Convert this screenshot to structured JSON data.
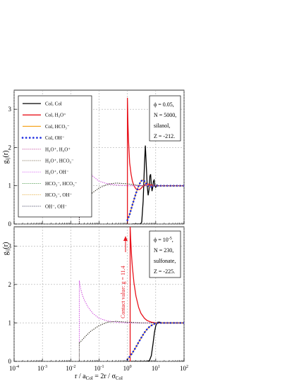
{
  "xlabel": "r / a_Col = 2r / σ_Col",
  "ylabel": "g_ij(r)",
  "xticks": [
    "10^-4",
    "10^-3",
    "10^-2",
    "10^-1",
    "10^0",
    "10^1",
    "10^2"
  ],
  "legend": [
    {
      "label": "Col, Col",
      "color": "#000000",
      "style": "solid"
    },
    {
      "label": "Col, H3O+",
      "color": "#e8141d",
      "style": "solid"
    },
    {
      "label": "Col, HCO3-",
      "color": "#f5a623",
      "style": "solid"
    },
    {
      "label": "Col, OH-",
      "color": "#1f2ee0",
      "style": "bigdots"
    },
    {
      "label": "H3O+, H3O+",
      "color": "#b9258a",
      "style": "dotted"
    },
    {
      "label": "H3O+, HCO3-",
      "color": "#7a6a50",
      "style": "dotted"
    },
    {
      "label": "H3O+, OH-",
      "color": "#d04cf0",
      "style": "dotted"
    },
    {
      "label": "HCO3-, HCO3-",
      "color": "#2e8b2e",
      "style": "dotted"
    },
    {
      "label": "HCO3-, OH-",
      "color": "#e0a020",
      "style": "dotted"
    },
    {
      "label": "OH-, OH-",
      "color": "#222244",
      "style": "dotted"
    }
  ],
  "panels": [
    {
      "info": [
        "ϕ = 0.05,",
        "N = 5000,",
        "silanol,",
        "Z = -212."
      ]
    },
    {
      "info": [
        "ϕ = 10^-5,",
        "N = 230,",
        "sulfonate,",
        "Z = -225."
      ],
      "annotation": "Contact value: g = 11.4"
    }
  ],
  "chart_data": [
    {
      "type": "line",
      "xscale": "log",
      "xlim": [
        0.0001,
        100
      ],
      "ylim": [
        0,
        3.5
      ],
      "yticks": [
        0,
        1,
        2,
        3
      ],
      "grid": true,
      "legend_position": "top-left",
      "series": [
        {
          "name": "Col, Col",
          "x": [
            1.5,
            2,
            2.5,
            2.9,
            3.2,
            3.6,
            4,
            4.3,
            4.6,
            5,
            5.4,
            5.8,
            6.2,
            6.6,
            7,
            7.4,
            7.8,
            8.3,
            8.8,
            9.3,
            10,
            11,
            12,
            14,
            20,
            100
          ],
          "y": [
            0,
            0,
            0,
            0,
            0.05,
            0.6,
            1.55,
            2.05,
            1.6,
            1.0,
            0.75,
            0.9,
            1.25,
            1.3,
            1.02,
            0.86,
            0.95,
            1.12,
            1.15,
            1.02,
            0.96,
            1.02,
            1.0,
            1.0,
            1.0,
            1.0
          ]
        },
        {
          "name": "Col, H3O+",
          "x": [
            1,
            1.05,
            1.1,
            1.2,
            1.35,
            1.5,
            1.7,
            2,
            2.3,
            2.7,
            3,
            3.5,
            4,
            5,
            6,
            8,
            10,
            20,
            100
          ],
          "y": [
            3.3,
            2.6,
            2.15,
            1.6,
            1.3,
            1.12,
            1.0,
            0.92,
            0.9,
            0.9,
            0.93,
            0.98,
            1.02,
            1.05,
            1.03,
            1.01,
            1.0,
            1.0,
            1.0
          ]
        },
        {
          "name": "Col, HCO3-",
          "x": [
            1,
            1.2,
            1.5,
            2,
            2.5,
            3,
            3.5,
            4,
            4.5,
            5,
            6,
            7,
            8,
            10,
            15,
            30,
            100
          ],
          "y": [
            0.1,
            0.25,
            0.5,
            0.8,
            1.0,
            1.12,
            1.15,
            1.12,
            1.06,
            1.02,
            0.97,
            0.97,
            1.0,
            1.0,
            1.0,
            1.0,
            1.0
          ]
        },
        {
          "name": "Col, OH-",
          "x": [
            1,
            1.2,
            1.5,
            2,
            2.5,
            3,
            3.5,
            4,
            4.5,
            5,
            6,
            7,
            8,
            10,
            15,
            30,
            100
          ],
          "y": [
            0.1,
            0.25,
            0.5,
            0.8,
            1.0,
            1.12,
            1.15,
            1.12,
            1.06,
            1.02,
            0.97,
            0.97,
            1.0,
            1.0,
            1.0,
            1.0,
            1.0
          ]
        },
        {
          "name": "H3O+, H3O+",
          "x": [
            0.02,
            0.022,
            0.025,
            0.03,
            0.04,
            0.06,
            0.1,
            0.2,
            0.4,
            1,
            2,
            10,
            100
          ],
          "y": [
            2.05,
            1.9,
            1.75,
            1.6,
            1.42,
            1.25,
            1.12,
            1.05,
            1.02,
            1.0,
            1.0,
            1.0,
            1.0
          ]
        },
        {
          "name": "H3O+, HCO3-",
          "x": [
            0.02,
            0.025,
            0.03,
            0.05,
            0.1,
            0.2,
            0.4,
            1,
            3,
            100
          ],
          "y": [
            0.48,
            0.55,
            0.62,
            0.78,
            0.94,
            1.04,
            1.07,
            1.05,
            1.0,
            1.0
          ]
        },
        {
          "name": "H3O+, OH-",
          "x": [
            0.02,
            0.022,
            0.025,
            0.03,
            0.04,
            0.06,
            0.1,
            0.2,
            0.4,
            1,
            2,
            10,
            100
          ],
          "y": [
            2.05,
            1.9,
            1.75,
            1.6,
            1.42,
            1.25,
            1.12,
            1.05,
            1.02,
            1.0,
            1.0,
            1.0,
            1.0
          ]
        },
        {
          "name": "HCO3-, HCO3-",
          "x": [
            0.02,
            0.025,
            0.03,
            0.05,
            0.1,
            0.2,
            0.4,
            1,
            3,
            100
          ],
          "y": [
            0.48,
            0.55,
            0.62,
            0.78,
            0.94,
            1.04,
            1.07,
            1.05,
            1.0,
            1.0
          ]
        },
        {
          "name": "HCO3-, OH-",
          "x": [
            0.02,
            0.025,
            0.03,
            0.05,
            0.1,
            0.2,
            0.4,
            1,
            3,
            100
          ],
          "y": [
            0.48,
            0.55,
            0.62,
            0.78,
            0.94,
            1.04,
            1.07,
            1.05,
            1.0,
            1.0
          ]
        },
        {
          "name": "OH-, OH-",
          "x": [
            0.02,
            0.025,
            0.03,
            0.05,
            0.1,
            0.2,
            0.4,
            1,
            3,
            100
          ],
          "y": [
            0.48,
            0.55,
            0.62,
            0.78,
            0.94,
            1.04,
            1.07,
            1.05,
            1.0,
            1.0
          ]
        }
      ]
    },
    {
      "type": "line",
      "xscale": "log",
      "xlim": [
        0.0001,
        100
      ],
      "ylim": [
        0,
        3.5
      ],
      "yticks": [
        0,
        1,
        2,
        3
      ],
      "grid": true,
      "series": [
        {
          "name": "Col, Col",
          "x": [
            1,
            3,
            5,
            6,
            7,
            8,
            9,
            10,
            11,
            12,
            14,
            16,
            20,
            30,
            100
          ],
          "y": [
            0,
            0,
            0,
            0.02,
            0.15,
            0.45,
            0.75,
            0.92,
            1.0,
            1.02,
            1.02,
            1.0,
            1.0,
            1.0,
            1.0
          ]
        },
        {
          "name": "Col, H3O+",
          "x": [
            1.25,
            1.3,
            1.4,
            1.5,
            1.7,
            2,
            2.5,
            3,
            4,
            5,
            7,
            10,
            20,
            100
          ],
          "y": [
            3.5,
            3.2,
            2.75,
            2.45,
            2.05,
            1.7,
            1.4,
            1.25,
            1.12,
            1.06,
            1.02,
            1.0,
            1.0,
            1.0
          ]
        },
        {
          "name": "Col, HCO3-",
          "x": [
            1,
            1.2,
            1.5,
            2,
            2.5,
            3,
            4,
            5,
            6,
            8,
            10,
            15,
            30,
            100
          ],
          "y": [
            0.05,
            0.12,
            0.22,
            0.37,
            0.5,
            0.6,
            0.75,
            0.84,
            0.9,
            0.96,
            0.99,
            1.0,
            1.0,
            1.0
          ]
        },
        {
          "name": "Col, OH-",
          "x": [
            1,
            1.2,
            1.5,
            2,
            2.5,
            3,
            4,
            5,
            6,
            8,
            10,
            15,
            30,
            100
          ],
          "y": [
            0.05,
            0.12,
            0.22,
            0.37,
            0.5,
            0.6,
            0.75,
            0.84,
            0.9,
            0.96,
            0.99,
            1.0,
            1.0,
            1.0
          ]
        },
        {
          "name": "H3O+, H3O+",
          "x": [
            0.02,
            0.022,
            0.025,
            0.03,
            0.04,
            0.06,
            0.1,
            0.2,
            0.4,
            1,
            2,
            10,
            100
          ],
          "y": [
            2.1,
            1.92,
            1.75,
            1.6,
            1.42,
            1.25,
            1.12,
            1.05,
            1.02,
            1.0,
            1.0,
            1.0,
            1.0
          ]
        },
        {
          "name": "H3O+, HCO3-",
          "x": [
            0.02,
            0.025,
            0.03,
            0.05,
            0.1,
            0.2,
            0.4,
            1,
            3,
            100
          ],
          "y": [
            0.48,
            0.55,
            0.62,
            0.78,
            0.93,
            1.02,
            1.04,
            1.02,
            1.0,
            1.0
          ]
        },
        {
          "name": "H3O+, OH-",
          "x": [
            0.02,
            0.022,
            0.025,
            0.03,
            0.04,
            0.06,
            0.1,
            0.2,
            0.4,
            1,
            2,
            10,
            100
          ],
          "y": [
            2.1,
            1.92,
            1.75,
            1.6,
            1.42,
            1.25,
            1.12,
            1.05,
            1.02,
            1.0,
            1.0,
            1.0,
            1.0
          ]
        },
        {
          "name": "HCO3-, HCO3-",
          "x": [
            0.02,
            0.025,
            0.03,
            0.05,
            0.1,
            0.2,
            0.4,
            1,
            3,
            100
          ],
          "y": [
            0.48,
            0.55,
            0.62,
            0.78,
            0.93,
            1.02,
            1.04,
            1.02,
            1.0,
            1.0
          ]
        },
        {
          "name": "HCO3-, OH-",
          "x": [
            0.02,
            0.025,
            0.03,
            0.05,
            0.1,
            0.2,
            0.4,
            1,
            3,
            100
          ],
          "y": [
            0.48,
            0.55,
            0.62,
            0.78,
            0.93,
            1.02,
            1.04,
            1.02,
            1.0,
            1.0
          ]
        },
        {
          "name": "OH-, OH-",
          "x": [
            0.02,
            0.025,
            0.03,
            0.05,
            0.1,
            0.2,
            0.4,
            1,
            3,
            100
          ],
          "y": [
            0.48,
            0.55,
            0.62,
            0.78,
            0.93,
            1.02,
            1.04,
            1.02,
            1.0,
            1.0
          ]
        }
      ]
    }
  ]
}
